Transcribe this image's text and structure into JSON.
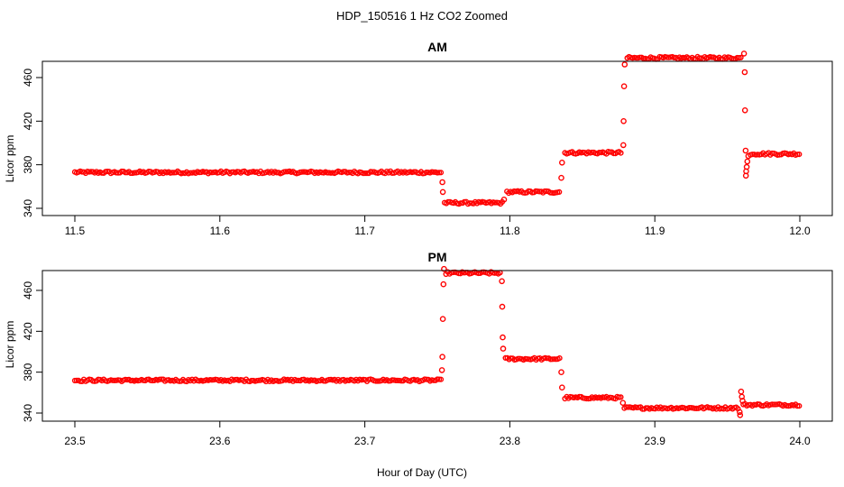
{
  "figure_title": "HDP_150516  1 Hz CO2 Zoomed",
  "xlabel": "Hour of Day (UTC)",
  "colors": {
    "points": "#ff0000",
    "frame": "#000000"
  },
  "chart_data": [
    {
      "type": "scatter",
      "title": "AM",
      "ylabel": "Licor ppm",
      "xlim": [
        11.5,
        12.0
      ],
      "ylim": [
        338,
        485
      ],
      "xticks": [
        "11.5",
        "11.6",
        "11.7",
        "11.8",
        "11.9",
        "12.0"
      ],
      "yticks": [
        "340",
        "380",
        "420",
        "460"
      ],
      "segments": [
        {
          "x0": 11.5,
          "x1": 11.753,
          "y": 373
        },
        {
          "x0": 11.755,
          "x1": 11.795,
          "y": 345
        },
        {
          "x0": 11.798,
          "x1": 11.835,
          "y": 355
        },
        {
          "x0": 11.838,
          "x1": 11.877,
          "y": 391
        },
        {
          "x0": 11.881,
          "x1": 11.96,
          "y": 478
        },
        {
          "x0": 11.966,
          "x1": 12.0,
          "y": 390
        }
      ],
      "transitions": [
        {
          "x": 11.7535,
          "y": 364
        },
        {
          "x": 11.7538,
          "y": 355
        },
        {
          "x": 11.796,
          "y": 348
        },
        {
          "x": 11.8355,
          "y": 368
        },
        {
          "x": 11.836,
          "y": 382
        },
        {
          "x": 11.8783,
          "y": 398
        },
        {
          "x": 11.8785,
          "y": 420
        },
        {
          "x": 11.8788,
          "y": 452
        },
        {
          "x": 11.8792,
          "y": 472
        },
        {
          "x": 11.9615,
          "y": 482
        },
        {
          "x": 11.962,
          "y": 465
        },
        {
          "x": 11.9622,
          "y": 430
        },
        {
          "x": 11.9626,
          "y": 393
        },
        {
          "x": 11.9628,
          "y": 370
        },
        {
          "x": 11.963,
          "y": 374
        },
        {
          "x": 11.9634,
          "y": 378
        },
        {
          "x": 11.9638,
          "y": 383
        },
        {
          "x": 11.9645,
          "y": 388
        }
      ]
    },
    {
      "type": "scatter",
      "title": "PM",
      "ylabel": "Licor ppm",
      "xlim": [
        23.5,
        24.0
      ],
      "ylim": [
        336,
        486
      ],
      "xticks": [
        "23.5",
        "23.6",
        "23.7",
        "23.8",
        "23.9",
        "24.0"
      ],
      "yticks": [
        "340",
        "380",
        "420",
        "460"
      ],
      "segments": [
        {
          "x0": 23.5,
          "x1": 23.753,
          "y": 372
        },
        {
          "x0": 23.756,
          "x1": 23.794,
          "y": 477
        },
        {
          "x0": 23.797,
          "x1": 23.835,
          "y": 393
        },
        {
          "x0": 23.838,
          "x1": 23.877,
          "y": 355
        },
        {
          "x0": 23.879,
          "x1": 23.958,
          "y": 345
        },
        {
          "x0": 23.961,
          "x1": 24.0,
          "y": 348
        }
      ],
      "transitions": [
        {
          "x": 23.7532,
          "y": 382
        },
        {
          "x": 23.7535,
          "y": 395
        },
        {
          "x": 23.7538,
          "y": 432
        },
        {
          "x": 23.7542,
          "y": 466
        },
        {
          "x": 23.7546,
          "y": 481
        },
        {
          "x": 23.7945,
          "y": 469
        },
        {
          "x": 23.7948,
          "y": 444
        },
        {
          "x": 23.7951,
          "y": 414
        },
        {
          "x": 23.7954,
          "y": 403
        },
        {
          "x": 23.8355,
          "y": 380
        },
        {
          "x": 23.836,
          "y": 365
        },
        {
          "x": 23.878,
          "y": 350
        },
        {
          "x": 23.9585,
          "y": 341
        },
        {
          "x": 23.9588,
          "y": 338
        },
        {
          "x": 23.9595,
          "y": 361
        },
        {
          "x": 23.96,
          "y": 356
        },
        {
          "x": 23.9605,
          "y": 352
        }
      ]
    }
  ]
}
